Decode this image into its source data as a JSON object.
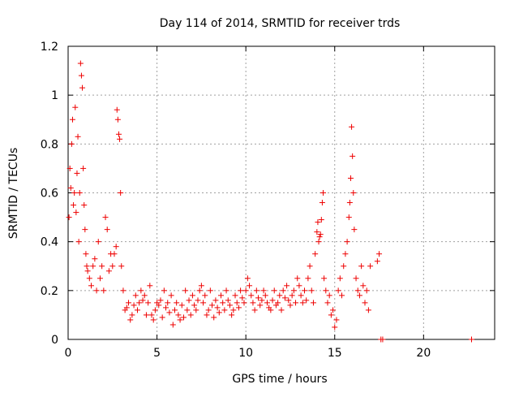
{
  "chart_data": {
    "type": "scatter",
    "title": "Day 114 of 2014, SRMTID for receiver trds",
    "xlabel": "GPS time / hours",
    "ylabel": "SRMTID / TECUs",
    "xlim": [
      0,
      24
    ],
    "ylim": [
      0,
      1.2
    ],
    "xticks": [
      0,
      5,
      10,
      15,
      20
    ],
    "xtick_labels": [
      "0",
      "5",
      "10",
      "15",
      "20"
    ],
    "yticks": [
      0,
      0.2,
      0.4,
      0.6,
      0.8,
      1.0,
      1.2
    ],
    "ytick_labels": [
      "0",
      "0.2",
      "0.4",
      "0.6",
      "0.8",
      "1",
      "1.2"
    ],
    "grid": true,
    "marker": "+",
    "color": "#ee0000",
    "series": [
      {
        "name": "trds",
        "x": [
          0.05,
          0.1,
          0.15,
          0.2,
          0.25,
          0.3,
          0.35,
          0.4,
          0.45,
          0.5,
          0.55,
          0.6,
          0.65,
          0.7,
          0.75,
          0.8,
          0.85,
          0.9,
          0.95,
          1.0,
          1.05,
          1.1,
          1.2,
          1.3,
          1.4,
          1.5,
          1.6,
          1.7,
          1.8,
          1.9,
          2.0,
          2.1,
          2.2,
          2.3,
          2.4,
          2.5,
          2.6,
          2.7,
          2.75,
          2.8,
          2.85,
          2.9,
          2.95,
          3.0,
          3.1,
          3.2,
          3.3,
          3.4,
          3.5,
          3.6,
          3.7,
          3.8,
          3.9,
          4.0,
          4.1,
          4.2,
          4.3,
          4.4,
          4.5,
          4.6,
          4.7,
          4.8,
          4.9,
          5.0,
          5.1,
          5.2,
          5.3,
          5.4,
          5.5,
          5.6,
          5.7,
          5.8,
          5.9,
          6.0,
          6.1,
          6.2,
          6.3,
          6.4,
          6.5,
          6.6,
          6.7,
          6.8,
          6.9,
          7.0,
          7.1,
          7.2,
          7.3,
          7.4,
          7.5,
          7.6,
          7.7,
          7.8,
          7.9,
          8.0,
          8.1,
          8.2,
          8.3,
          8.4,
          8.5,
          8.6,
          8.7,
          8.8,
          8.9,
          9.0,
          9.1,
          9.2,
          9.3,
          9.4,
          9.5,
          9.6,
          9.7,
          9.8,
          9.9,
          10.0,
          10.1,
          10.2,
          10.3,
          10.4,
          10.5,
          10.6,
          10.7,
          10.8,
          10.9,
          11.0,
          11.1,
          11.2,
          11.3,
          11.4,
          11.5,
          11.6,
          11.7,
          11.8,
          11.9,
          12.0,
          12.1,
          12.2,
          12.3,
          12.4,
          12.5,
          12.6,
          12.7,
          12.8,
          12.9,
          13.0,
          13.1,
          13.2,
          13.3,
          13.4,
          13.5,
          13.6,
          13.7,
          13.8,
          13.9,
          14.0,
          14.05,
          14.1,
          14.15,
          14.2,
          14.25,
          14.3,
          14.35,
          14.4,
          14.5,
          14.6,
          14.7,
          14.8,
          14.9,
          15.0,
          15.1,
          15.2,
          15.3,
          15.4,
          15.5,
          15.6,
          15.7,
          15.8,
          15.85,
          15.9,
          15.95,
          16.0,
          16.05,
          16.1,
          16.2,
          16.3,
          16.4,
          16.5,
          16.6,
          16.7,
          16.8,
          16.9,
          17.0,
          17.4,
          17.5,
          17.6,
          17.7,
          22.7
        ],
        "y": [
          0.5,
          0.7,
          0.62,
          0.8,
          0.9,
          0.55,
          0.6,
          0.95,
          0.52,
          0.68,
          0.83,
          0.4,
          0.6,
          1.13,
          1.08,
          1.03,
          0.7,
          0.55,
          0.45,
          0.35,
          0.3,
          0.28,
          0.25,
          0.22,
          0.3,
          0.33,
          0.2,
          0.4,
          0.25,
          0.3,
          0.2,
          0.5,
          0.45,
          0.28,
          0.35,
          0.3,
          0.35,
          0.38,
          0.94,
          0.9,
          0.84,
          0.82,
          0.6,
          0.3,
          0.2,
          0.12,
          0.13,
          0.15,
          0.08,
          0.1,
          0.14,
          0.18,
          0.12,
          0.15,
          0.2,
          0.16,
          0.18,
          0.1,
          0.15,
          0.22,
          0.1,
          0.08,
          0.12,
          0.15,
          0.14,
          0.16,
          0.09,
          0.2,
          0.13,
          0.15,
          0.11,
          0.18,
          0.06,
          0.12,
          0.15,
          0.1,
          0.08,
          0.14,
          0.09,
          0.2,
          0.12,
          0.16,
          0.1,
          0.18,
          0.14,
          0.12,
          0.16,
          0.2,
          0.22,
          0.15,
          0.18,
          0.1,
          0.12,
          0.2,
          0.14,
          0.09,
          0.16,
          0.13,
          0.11,
          0.18,
          0.15,
          0.12,
          0.2,
          0.16,
          0.14,
          0.1,
          0.12,
          0.18,
          0.15,
          0.13,
          0.2,
          0.17,
          0.15,
          0.2,
          0.25,
          0.22,
          0.18,
          0.15,
          0.12,
          0.2,
          0.17,
          0.14,
          0.16,
          0.2,
          0.18,
          0.15,
          0.13,
          0.12,
          0.16,
          0.2,
          0.14,
          0.15,
          0.18,
          0.12,
          0.2,
          0.17,
          0.22,
          0.16,
          0.14,
          0.18,
          0.2,
          0.15,
          0.25,
          0.22,
          0.18,
          0.15,
          0.2,
          0.16,
          0.25,
          0.3,
          0.2,
          0.15,
          0.35,
          0.44,
          0.48,
          0.4,
          0.42,
          0.43,
          0.49,
          0.56,
          0.6,
          0.25,
          0.2,
          0.15,
          0.18,
          0.1,
          0.12,
          0.05,
          0.08,
          0.2,
          0.25,
          0.18,
          0.3,
          0.35,
          0.4,
          0.5,
          0.56,
          0.66,
          0.87,
          0.75,
          0.6,
          0.45,
          0.25,
          0.2,
          0.18,
          0.3,
          0.22,
          0.15,
          0.2,
          0.12,
          0.3,
          0.32,
          0.35,
          0.0,
          0.0,
          0.0
        ]
      }
    ]
  }
}
